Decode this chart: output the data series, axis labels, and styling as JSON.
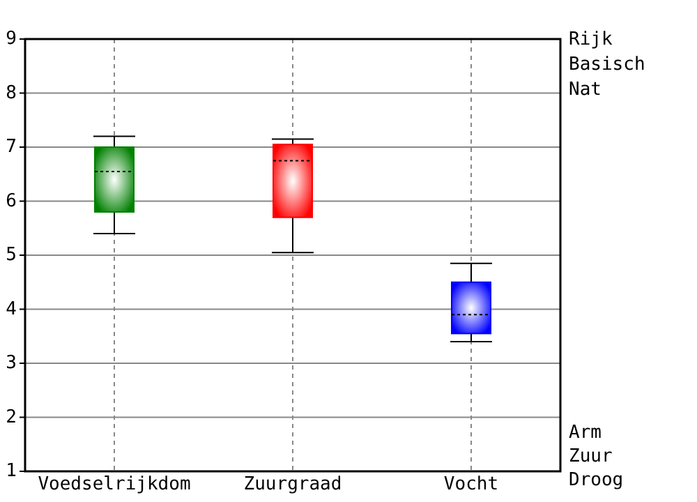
{
  "chart_data": {
    "type": "box",
    "categories": [
      "Voedselrijkdom",
      "Zuurgraad",
      "Vocht"
    ],
    "colors": [
      "#008000",
      "#ff0000",
      "#0000ff"
    ],
    "boxes": [
      {
        "low": 5.4,
        "q1": 5.8,
        "median": 6.55,
        "q3": 7.0,
        "high": 7.2
      },
      {
        "low": 5.05,
        "q1": 5.7,
        "median": 6.75,
        "q3": 7.05,
        "high": 7.15
      },
      {
        "low": 3.4,
        "q1": 3.55,
        "median": 3.9,
        "q3": 4.5,
        "high": 4.85
      }
    ],
    "ylim": [
      1,
      9
    ],
    "yticks": [
      1,
      2,
      3,
      4,
      5,
      6,
      7,
      8,
      9
    ],
    "grid": true,
    "annotations": [
      "Rijk",
      "Basisch",
      "Nat",
      "Arm",
      "Zuur",
      "Droog"
    ]
  }
}
